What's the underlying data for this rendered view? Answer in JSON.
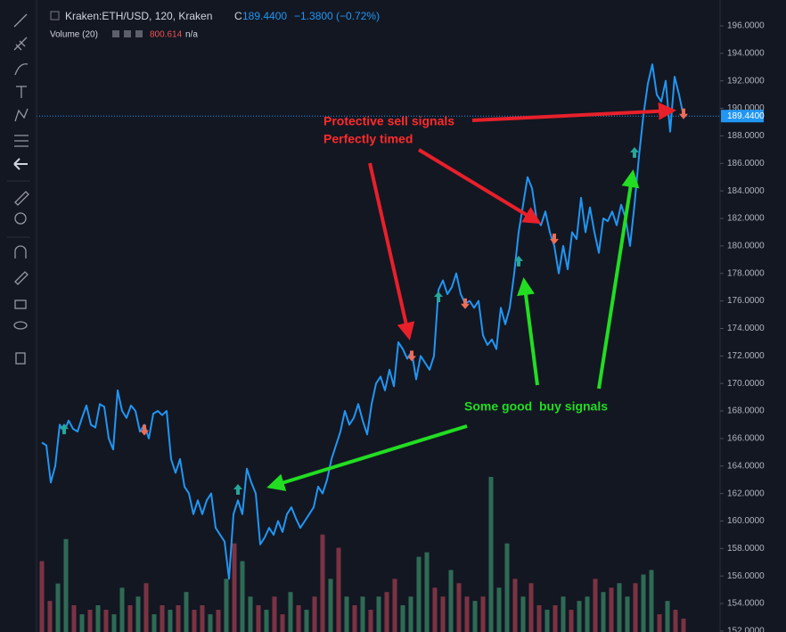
{
  "chart_data": {
    "type": "line",
    "symbol": "Kraken:ETH/USD, 120, Kraken",
    "close_prefix": "C",
    "close": "189.4400",
    "change": "−1.3800 (−0.72%)",
    "volume_label": "Volume (20)",
    "volume_value": "800.614",
    "volume_na": "n/a",
    "ylim": [
      151.93,
      197.88
    ],
    "yticks": [
      {
        "value": 152,
        "label": "152.0000"
      },
      {
        "value": 154,
        "label": "154.0000"
      },
      {
        "value": 156,
        "label": "156.0000"
      },
      {
        "value": 158,
        "label": "158.0000"
      },
      {
        "value": 160,
        "label": "160.0000"
      },
      {
        "value": 162,
        "label": "162.0000"
      },
      {
        "value": 164,
        "label": "164.0000"
      },
      {
        "value": 166,
        "label": "166.0000"
      },
      {
        "value": 168,
        "label": "168.0000"
      },
      {
        "value": 170,
        "label": "170.0000"
      },
      {
        "value": 172,
        "label": "172.0000"
      },
      {
        "value": 174,
        "label": "174.0000"
      },
      {
        "value": 176,
        "label": "176.0000"
      },
      {
        "value": 178,
        "label": "178.0000"
      },
      {
        "value": 180,
        "label": "180.0000"
      },
      {
        "value": 182,
        "label": "182.0000"
      },
      {
        "value": 184,
        "label": "184.0000"
      },
      {
        "value": 186,
        "label": "186.0000"
      },
      {
        "value": 188,
        "label": "188.0000"
      },
      {
        "value": 190,
        "label": "190.0000"
      },
      {
        "value": 192,
        "label": "192.0000"
      },
      {
        "value": 194,
        "label": "194.0000"
      },
      {
        "value": 196,
        "label": "196.0000"
      }
    ],
    "last_price": {
      "value": 189.44,
      "label": "189.4400"
    },
    "series": [
      {
        "name": "ETH/USD",
        "color": "#2196f3",
        "values": [
          165.7,
          165.5,
          162.8,
          164,
          167,
          166.5,
          167.3,
          166.7,
          166.5,
          167.5,
          168.4,
          167,
          166.8,
          168.5,
          168.3,
          166,
          165.2,
          169.5,
          168,
          167.5,
          168.4,
          168,
          166.5,
          167,
          166,
          167.8,
          168,
          167.7,
          168,
          164.5,
          163.5,
          164.5,
          162.5,
          162,
          160.5,
          161.5,
          160.5,
          161.5,
          162,
          159.5,
          159,
          158.5,
          155.8,
          160.5,
          161.5,
          160.5,
          163.8,
          162.8,
          162,
          158.3,
          158.8,
          159.5,
          159,
          160,
          159.2,
          160.5,
          161,
          160.2,
          159.5,
          160,
          160.5,
          161,
          162.5,
          162,
          163,
          164.5,
          165.5,
          166.5,
          168,
          167,
          167.5,
          168.5,
          167.3,
          166.3,
          168.5,
          170,
          170.5,
          169.5,
          171,
          169.8,
          173,
          172.5,
          171.8,
          172.3,
          170.3,
          172,
          171.5,
          171,
          172,
          176.8,
          177.5,
          176.5,
          177,
          178,
          176.5,
          175.8,
          176,
          175.5,
          176,
          173.5,
          172.8,
          173.2,
          172.5,
          175.5,
          174.3,
          175.5,
          178,
          181,
          183,
          185,
          184.2,
          182,
          181.5,
          182.5,
          181,
          180,
          178,
          180,
          178.3,
          181,
          180.5,
          183.5,
          181,
          182.8,
          181,
          179.5,
          182,
          181.8,
          182.5,
          181.5,
          183,
          182,
          180,
          183,
          186.5,
          189.5,
          191.8,
          193.2,
          191,
          190.5,
          192,
          188.3,
          192.3,
          191,
          189.44
        ]
      }
    ],
    "signals": [
      {
        "name": "buy",
        "color": "#26a69a",
        "x": [
          5,
          44,
          89,
          107,
          133
        ],
        "values": [
          166.7,
          162.3,
          176.3,
          178.9,
          186.8
        ]
      },
      {
        "name": "sell",
        "color": "#ef6c57",
        "x": [
          23,
          83,
          95,
          115,
          144
        ],
        "values": [
          166.6,
          172.0,
          175.8,
          180.5,
          189.6
        ]
      }
    ],
    "volume": {
      "ylim": [
        0,
        12000
      ],
      "up_color": "#2e6b55",
      "down_color": "#7b3343",
      "values": [
        4240,
        1860,
        2900,
        5560,
        1600,
        1060,
        1330,
        1600,
        1330,
        1060,
        2650,
        1600,
        2120,
        2920,
        1060,
        1600,
        1330,
        1600,
        2390,
        1330,
        1600,
        1060,
        1330,
        3180,
        5300,
        4240,
        2120,
        1600,
        1330,
        2120,
        1060,
        2390,
        1600,
        1330,
        2120,
        5830,
        3180,
        5040,
        2120,
        1600,
        2120,
        1330,
        2120,
        2390,
        3180,
        1600,
        2120,
        4500,
        4770,
        2650,
        2120,
        3710,
        2920,
        2120,
        1860,
        2120,
        9280,
        2650,
        5300,
        3180,
        2120,
        2920,
        1600,
        1330,
        1600,
        2120,
        1330,
        1860,
        2120,
        3180,
        2390,
        2650,
        2920,
        2120,
        2920,
        3440,
        3710,
        1060,
        1860,
        1330,
        800.614
      ],
      "up": [
        false,
        false,
        true,
        true,
        false,
        true,
        false,
        true,
        false,
        true,
        true,
        false,
        true,
        false,
        true,
        false,
        true,
        false,
        true,
        false,
        false,
        true,
        false,
        true,
        false,
        true,
        true,
        false,
        true,
        false,
        false,
        true,
        false,
        true,
        false,
        false,
        true,
        false,
        true,
        false,
        true,
        false,
        true,
        false,
        false,
        true,
        true,
        true,
        true,
        false,
        false,
        true,
        false,
        false,
        true,
        false,
        true,
        true,
        true,
        false,
        true,
        false,
        false,
        true,
        false,
        true,
        false,
        true,
        true,
        false,
        true,
        false,
        true,
        true,
        false,
        true,
        true,
        false,
        true,
        false,
        false
      ]
    },
    "annotations": {
      "sell_text_1": "Protective sell signals",
      "sell_text_2": "Perfectly timed",
      "buy_text": "Some good  buy signals"
    }
  }
}
